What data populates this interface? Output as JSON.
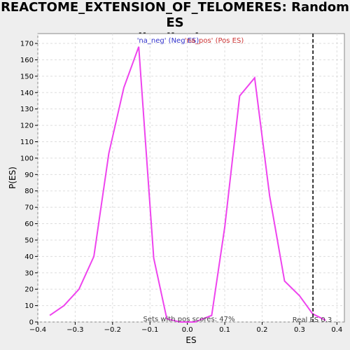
{
  "chart_data": {
    "type": "line",
    "title_line1": "REACTOME_EXTENSION_OF_TELOMERES: Random ES",
    "title_line2": "distribution",
    "xlabel": "ES",
    "ylabel": "P(ES)",
    "xlim": [
      -0.4,
      0.42
    ],
    "ylim": [
      0,
      176
    ],
    "xticks": [
      -0.4,
      -0.3,
      -0.2,
      -0.1,
      0.0,
      0.1,
      0.2,
      0.3,
      0.4
    ],
    "xtick_labels": [
      "−0.4",
      "−0.3",
      "−0.2",
      "−0.1",
      "0.0",
      "0.1",
      "0.2",
      "0.3",
      "0.4"
    ],
    "yticks": [
      0,
      10,
      20,
      30,
      40,
      50,
      60,
      70,
      80,
      90,
      100,
      110,
      120,
      130,
      140,
      150,
      160,
      170
    ],
    "grid": true,
    "series": [
      {
        "color": "#ee44ee",
        "x": [
          -0.368,
          -0.33,
          -0.29,
          -0.25,
          -0.21,
          -0.17,
          -0.13,
          -0.09,
          -0.055,
          -0.02,
          0.02,
          0.065,
          0.1,
          0.14,
          0.18,
          0.22,
          0.26,
          0.3,
          0.335,
          0.37
        ],
        "y": [
          4,
          10,
          20,
          40,
          103,
          143,
          168,
          39,
          2,
          0,
          0,
          4,
          58,
          138,
          149,
          77,
          25,
          16,
          5,
          1
        ]
      }
    ],
    "real_es": 0.336,
    "real_es_label": "Real ES 0.3",
    "legend": [
      {
        "label": "'na_neg' (Neg ES)",
        "color": "#3333cc"
      },
      {
        "label": "'na_pos' (Pos ES)",
        "color": "#cc3333"
      }
    ],
    "annotation": "Sets with pos scores: 47%"
  }
}
